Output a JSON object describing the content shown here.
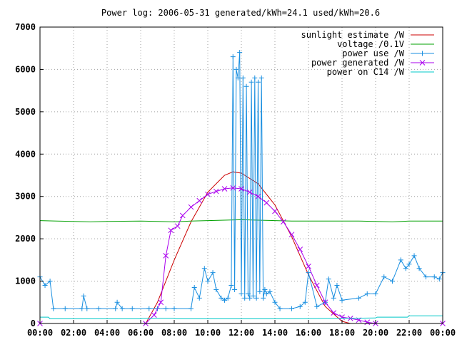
{
  "chart_data": {
    "type": "line",
    "title": "Power log: 2006-05-31 generated/kWh=24.1 used/kWh=20.6",
    "xlabel": "",
    "ylabel": "",
    "x_unit": "hours",
    "xlim": [
      0,
      24
    ],
    "ylim": [
      0,
      7000
    ],
    "grid": true,
    "legend_position": "top-right",
    "x_ticks": [
      {
        "v": 0,
        "label": "00:00"
      },
      {
        "v": 2,
        "label": "02:00"
      },
      {
        "v": 4,
        "label": "04:00"
      },
      {
        "v": 6,
        "label": "06:00"
      },
      {
        "v": 8,
        "label": "08:00"
      },
      {
        "v": 10,
        "label": "10:00"
      },
      {
        "v": 12,
        "label": "12:00"
      },
      {
        "v": 14,
        "label": "14:00"
      },
      {
        "v": 16,
        "label": "16:00"
      },
      {
        "v": 18,
        "label": "18:00"
      },
      {
        "v": 20,
        "label": "20:00"
      },
      {
        "v": 22,
        "label": "22:00"
      },
      {
        "v": 24,
        "label": "00:00"
      }
    ],
    "y_ticks": [
      {
        "v": 0,
        "label": "0"
      },
      {
        "v": 1000,
        "label": "1000"
      },
      {
        "v": 2000,
        "label": "2000"
      },
      {
        "v": 3000,
        "label": "3000"
      },
      {
        "v": 4000,
        "label": "4000"
      },
      {
        "v": 5000,
        "label": "5000"
      },
      {
        "v": 6000,
        "label": "6000"
      },
      {
        "v": 7000,
        "label": "7000"
      }
    ],
    "series": [
      {
        "name": "sunlight estimate /W",
        "color": "#cc0000",
        "marker": "none",
        "x": [
          0,
          6.3,
          7,
          8,
          9,
          10,
          11,
          11.5,
          12,
          13,
          14,
          15,
          16,
          17,
          18,
          18.5,
          24
        ],
        "y": [
          0,
          0,
          500,
          1500,
          2400,
          3100,
          3500,
          3580,
          3550,
          3300,
          2800,
          2050,
          1150,
          400,
          50,
          0,
          0
        ]
      },
      {
        "name": "voltage /0.1V",
        "color": "#00a000",
        "marker": "none",
        "x": [
          0,
          1,
          2,
          3,
          4,
          5,
          6,
          7,
          8,
          9,
          10,
          11,
          12,
          13,
          14,
          15,
          16,
          17,
          18,
          19,
          20,
          21,
          22,
          23,
          24
        ],
        "y": [
          2430,
          2420,
          2410,
          2400,
          2410,
          2415,
          2420,
          2410,
          2400,
          2420,
          2430,
          2440,
          2450,
          2440,
          2430,
          2420,
          2420,
          2420,
          2420,
          2420,
          2410,
          2400,
          2420,
          2420,
          2420
        ]
      },
      {
        "name": "power use /W",
        "color": "#1a8fe0",
        "marker": "plus",
        "x": [
          0,
          0.3,
          0.6,
          0.8,
          1.5,
          2.5,
          2.6,
          2.8,
          3.5,
          4.5,
          4.6,
          4.9,
          5.5,
          6.5,
          7.0,
          7.5,
          8.0,
          9.0,
          9.2,
          9.5,
          9.8,
          10.0,
          10.3,
          10.5,
          10.8,
          11.0,
          11.2,
          11.4,
          11.5,
          11.6,
          11.7,
          11.8,
          11.9,
          12.0,
          12.1,
          12.2,
          12.3,
          12.4,
          12.5,
          12.6,
          12.7,
          12.8,
          12.9,
          13.0,
          13.1,
          13.2,
          13.3,
          13.4,
          13.5,
          13.7,
          14.0,
          14.3,
          15.0,
          15.5,
          15.8,
          16.0,
          16.5,
          17.0,
          17.2,
          17.5,
          17.7,
          18.0,
          19.0,
          19.5,
          20.0,
          20.5,
          21.0,
          21.5,
          21.8,
          22.0,
          22.3,
          22.6,
          23.0,
          23.5,
          23.8,
          24.0
        ],
        "y": [
          1100,
          900,
          1000,
          350,
          350,
          350,
          650,
          350,
          350,
          350,
          500,
          350,
          350,
          350,
          350,
          350,
          350,
          350,
          850,
          600,
          1300,
          1000,
          1200,
          800,
          600,
          550,
          600,
          900,
          6300,
          800,
          6000,
          5800,
          6400,
          700,
          5800,
          600,
          5600,
          700,
          600,
          5700,
          650,
          5800,
          600,
          5700,
          750,
          5800,
          600,
          800,
          700,
          750,
          500,
          350,
          350,
          400,
          500,
          1200,
          400,
          500,
          1050,
          600,
          900,
          550,
          600,
          700,
          700,
          1100,
          1000,
          1500,
          1300,
          1400,
          1600,
          1300,
          1100,
          1100,
          1050,
          1200
        ]
      },
      {
        "name": "power generated /W",
        "color": "#aa00ee",
        "marker": "x",
        "x": [
          0,
          6.3,
          6.8,
          7.2,
          7.5,
          7.8,
          8.2,
          8.5,
          9.0,
          9.5,
          10.0,
          10.5,
          11.0,
          11.5,
          12.0,
          12.5,
          13.0,
          13.5,
          14.0,
          14.5,
          15.0,
          15.5,
          16.0,
          16.5,
          17.0,
          17.5,
          18.0,
          18.5,
          19.0,
          19.5,
          20.0,
          24.0
        ],
        "y": [
          0,
          0,
          200,
          500,
          1600,
          2200,
          2300,
          2550,
          2750,
          2900,
          3050,
          3120,
          3180,
          3200,
          3180,
          3100,
          3000,
          2850,
          2650,
          2400,
          2100,
          1750,
          1350,
          900,
          500,
          250,
          150,
          120,
          80,
          30,
          0,
          0
        ]
      },
      {
        "name": "power on C14 /W",
        "color": "#00c8c8",
        "marker": "none",
        "x": [
          0,
          0.5,
          0.6,
          6.0,
          6.1,
          8.0,
          8.1,
          15.0,
          20.0,
          20.1,
          21.9,
          22.0,
          24.0
        ],
        "y": [
          150,
          150,
          110,
          110,
          120,
          120,
          110,
          110,
          130,
          150,
          150,
          180,
          180
        ]
      }
    ]
  }
}
